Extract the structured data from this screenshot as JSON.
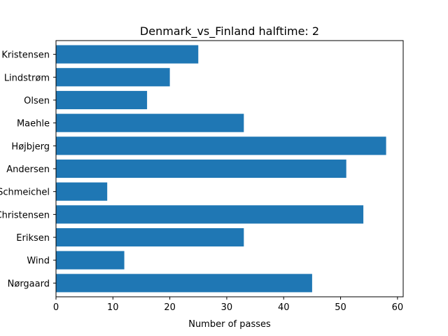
{
  "chart_data": {
    "type": "bar",
    "orientation": "horizontal",
    "title": "Denmark_vs_Finland halftime: 2",
    "xlabel": "Number of passes",
    "ylabel": "",
    "xlim": [
      0,
      61
    ],
    "xticks": [
      0,
      10,
      20,
      30,
      40,
      50,
      60
    ],
    "grid": false,
    "bar_color": "#1f77b4",
    "categories": [
      "Kristensen",
      "Lindstrøm",
      "Olsen",
      "Maehle",
      "Højbjerg",
      "Andersen",
      "Schmeichel",
      "Christensen",
      "Eriksen",
      "Wind",
      "Nørgaard"
    ],
    "values": [
      25,
      20,
      16,
      33,
      58,
      51,
      9,
      54,
      33,
      12,
      45
    ]
  }
}
